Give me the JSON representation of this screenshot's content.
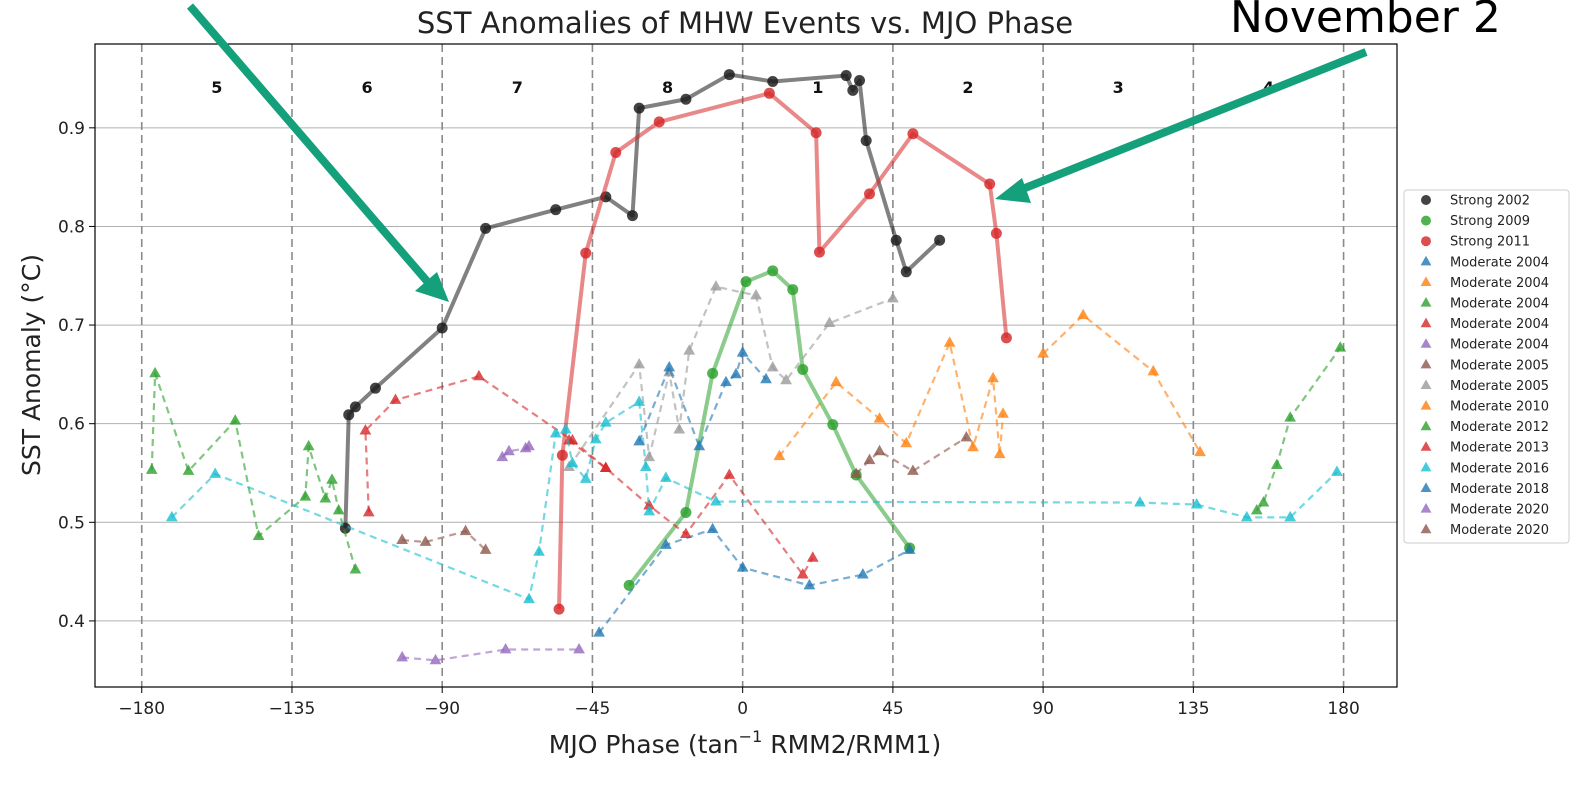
{
  "chart_data": {
    "type": "scatter",
    "title": "SST Anomalies of MHW Events vs. MJO Phase",
    "xlabel_main": "MJO Phase (tan",
    "xlabel_sup": "−1",
    "xlabel_tail": " RMM2/RMM1)",
    "ylabel": "SST Anomaly (°C)",
    "xlim": [
      -194,
      196
    ],
    "ylim": [
      0.333,
      0.985
    ],
    "xticks": [
      -180,
      -135,
      -90,
      -45,
      0,
      45,
      90,
      135,
      180
    ],
    "xtick_labels": [
      "−180",
      "−135",
      "−90",
      "−45",
      "0",
      "45",
      "90",
      "135",
      "180"
    ],
    "yticks": [
      0.4,
      0.5,
      0.6,
      0.7,
      0.8,
      0.9
    ],
    "ytick_labels": [
      "0.4",
      "0.5",
      "0.6",
      "0.7",
      "0.8",
      "0.9"
    ],
    "grid": "horizontal",
    "phase_boundaries": [
      -180,
      -135,
      -90,
      -45,
      0,
      45,
      90,
      135,
      180
    ],
    "phase_labels": [
      {
        "label": "5",
        "x": -157.5
      },
      {
        "label": "6",
        "x": -112.5
      },
      {
        "label": "7",
        "x": -67.5
      },
      {
        "label": "8",
        "x": -22.5
      },
      {
        "label": "1",
        "x": 22.5
      },
      {
        "label": "2",
        "x": 67.5
      },
      {
        "label": "3",
        "x": 112.5
      },
      {
        "label": "4",
        "x": 157.5
      }
    ],
    "legend_position": "right",
    "annotation_text": "November 2",
    "series": [
      {
        "name": "Strong 2002",
        "marker": "circle",
        "color": "#1a1a1a",
        "line": "solid",
        "x": [
          -119,
          -118,
          -116,
          -110,
          -90,
          -77,
          -56,
          -41,
          -33,
          -31,
          -17,
          -4,
          9,
          31,
          33,
          35,
          37,
          46,
          49,
          59
        ],
        "y": [
          0.494,
          0.609,
          0.617,
          0.636,
          0.697,
          0.798,
          0.817,
          0.83,
          0.811,
          0.92,
          0.929,
          0.954,
          0.947,
          0.953,
          0.938,
          0.948,
          0.887,
          0.786,
          0.754,
          0.786
        ]
      },
      {
        "name": "Strong 2009",
        "marker": "circle",
        "color": "#2ca02c",
        "line": "solid",
        "x": [
          -34,
          -17,
          -9,
          1,
          9,
          15,
          18,
          27,
          34,
          50
        ],
        "y": [
          0.436,
          0.51,
          0.651,
          0.744,
          0.755,
          0.736,
          0.655,
          0.599,
          0.548,
          0.474
        ]
      },
      {
        "name": "Strong 2011",
        "marker": "circle",
        "color": "#d62728",
        "line": "solid",
        "x": [
          -55,
          -54,
          -47,
          -38,
          -25,
          8,
          22,
          23,
          38,
          51,
          74,
          76,
          79
        ],
        "y": [
          0.412,
          0.568,
          0.773,
          0.875,
          0.906,
          0.935,
          0.895,
          0.774,
          0.833,
          0.894,
          0.843,
          0.793,
          0.687
        ]
      },
      {
        "name": "Moderate 2004",
        "marker": "triangle",
        "color": "#1f77b4",
        "line": "dashed",
        "x": [
          -43,
          -23,
          -9,
          0,
          20,
          36,
          50
        ],
        "y": [
          0.388,
          0.477,
          0.493,
          0.454,
          0.436,
          0.447,
          0.472
        ]
      },
      {
        "name": "Moderate 2004",
        "marker": "triangle",
        "color": "#ff7f0e",
        "line": "dashed",
        "x": [
          11,
          28,
          41,
          49,
          62,
          69,
          75,
          77,
          78
        ],
        "y": [
          0.567,
          0.642,
          0.605,
          0.58,
          0.682,
          0.576,
          0.646,
          0.569,
          0.61
        ]
      },
      {
        "name": "Moderate 2004",
        "marker": "triangle",
        "color": "#2ca02c",
        "line": "dashed",
        "x": [
          -177,
          -176,
          -166,
          -152,
          -145,
          -131,
          -130,
          -125,
          -123,
          -121,
          -116
        ],
        "y": [
          0.553,
          0.651,
          0.552,
          0.603,
          0.486,
          0.526,
          0.577,
          0.524,
          0.543,
          0.512,
          0.452
        ]
      },
      {
        "name": "Moderate 2004",
        "marker": "triangle",
        "color": "#d62728",
        "line": "dashed",
        "x": [
          -112,
          -113,
          -104,
          -79,
          -51,
          -41,
          -28,
          -17,
          -4,
          18,
          21
        ],
        "y": [
          0.51,
          0.593,
          0.624,
          0.648,
          0.583,
          0.555,
          0.517,
          0.488,
          0.548,
          0.447,
          0.464
        ]
      },
      {
        "name": "Moderate 2004",
        "marker": "triangle",
        "color": "#9467bd",
        "line": "dashed",
        "x": [
          -102,
          -92,
          -71,
          -49
        ],
        "y": [
          0.363,
          0.36,
          0.371,
          0.371
        ]
      },
      {
        "name": "Moderate 2005",
        "marker": "triangle",
        "color": "#8c564b",
        "line": "dashed",
        "x": [
          -102,
          -95,
          -83,
          -77
        ],
        "y": [
          0.482,
          0.48,
          0.491,
          0.472
        ]
      },
      {
        "name": "Moderate 2005",
        "marker": "triangle",
        "color": "#9a9a9a",
        "line": "dashed",
        "x": [
          -52,
          -31,
          -28,
          -22,
          -19,
          -16,
          -8,
          4,
          9,
          13,
          26,
          45
        ],
        "y": [
          0.556,
          0.66,
          0.566,
          0.652,
          0.594,
          0.674,
          0.739,
          0.73,
          0.657,
          0.644,
          0.702,
          0.727
        ]
      },
      {
        "name": "Moderate 2010",
        "marker": "triangle",
        "color": "#ff7f0e",
        "line": "dashed",
        "x": [
          90,
          102,
          123,
          137
        ],
        "y": [
          0.671,
          0.71,
          0.653,
          0.571
        ]
      },
      {
        "name": "Moderate 2012",
        "marker": "triangle",
        "color": "#2ca02c",
        "line": "dashed",
        "x": [
          154,
          156,
          160,
          164,
          179
        ],
        "y": [
          0.512,
          0.52,
          0.558,
          0.606,
          0.677
        ]
      },
      {
        "name": "Moderate 2013",
        "marker": "triangle",
        "color": "#d62728",
        "line": "dashed",
        "x": [
          -52,
          -41
        ],
        "y": [
          0.583,
          0.555
        ]
      },
      {
        "name": "Moderate 2016",
        "marker": "triangle",
        "color": "#17becf",
        "line": "dashed",
        "x": [
          -171,
          -158,
          -64,
          -61,
          -56,
          -53,
          -51,
          -47,
          -44,
          -41,
          -31,
          -29,
          -28,
          -23,
          -8,
          119,
          136,
          151,
          164,
          178
        ],
        "y": [
          0.505,
          0.549,
          0.422,
          0.47,
          0.59,
          0.594,
          0.56,
          0.544,
          0.584,
          0.601,
          0.622,
          0.556,
          0.511,
          0.545,
          0.521,
          0.52,
          0.518,
          0.505,
          0.505,
          0.551
        ]
      },
      {
        "name": "Moderate 2018",
        "marker": "triangle",
        "color": "#1f77b4",
        "line": "dashed",
        "x": [
          -31,
          -22,
          -13,
          -5,
          -2,
          0,
          7
        ],
        "y": [
          0.582,
          0.657,
          0.577,
          0.642,
          0.65,
          0.672,
          0.645
        ]
      },
      {
        "name": "Moderate 2020",
        "marker": "triangle",
        "color": "#9467bd",
        "line": "dashed",
        "x": [
          -72,
          -70,
          -65,
          -64
        ],
        "y": [
          0.566,
          0.572,
          0.575,
          0.577
        ]
      },
      {
        "name": "Moderate 2020",
        "marker": "triangle",
        "color": "#8c564b",
        "line": "dashed",
        "x": [
          34,
          38,
          41,
          51,
          67
        ],
        "y": [
          0.549,
          0.563,
          0.572,
          0.552,
          0.586
        ]
      }
    ]
  }
}
